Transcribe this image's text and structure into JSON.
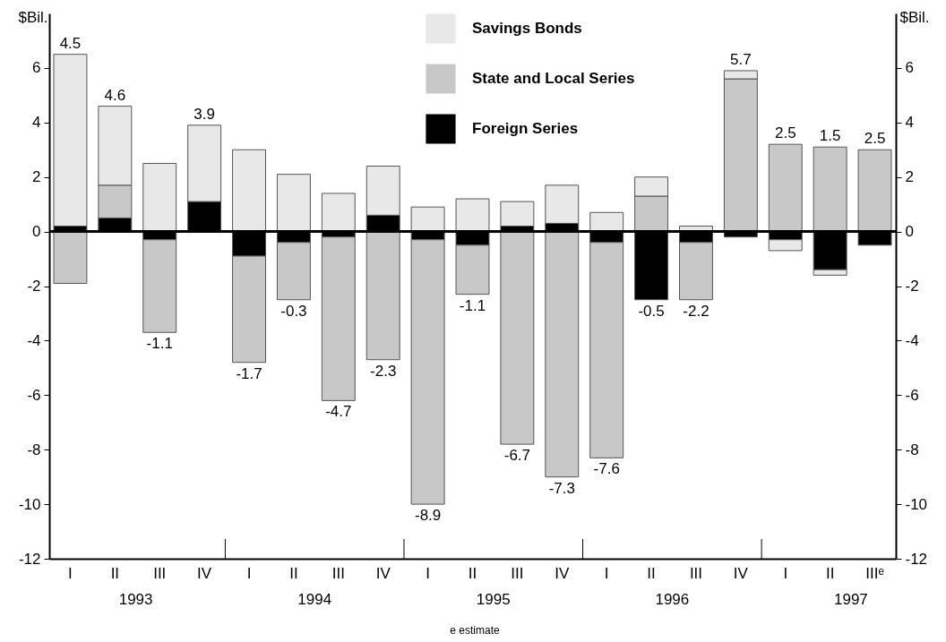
{
  "chart_data": {
    "type": "bar",
    "stacked": true,
    "categories": [
      "I",
      "II",
      "III",
      "IV",
      "I",
      "II",
      "III",
      "IV",
      "I",
      "II",
      "III",
      "IV",
      "I",
      "II",
      "III",
      "IV",
      "I",
      "II",
      "IIIᵉ"
    ],
    "series": [
      {
        "name": "Foreign Series",
        "color": "#000000",
        "values": [
          0.2,
          0.5,
          -0.3,
          1.1,
          -0.9,
          -0.4,
          -0.2,
          0.6,
          -0.3,
          -0.5,
          0.2,
          0.3,
          -0.4,
          -2.5,
          -0.4,
          -0.2,
          -0.3,
          -1.4,
          -0.5
        ]
      },
      {
        "name": "State and Local Series",
        "color": "#c8c8c8",
        "values": [
          -1.9,
          1.2,
          -3.4,
          null,
          -3.9,
          -2.1,
          -6.0,
          -4.7,
          -9.7,
          -1.8,
          -7.8,
          -9.0,
          -7.9,
          1.3,
          -2.1,
          5.6,
          3.2,
          3.1,
          3.0
        ]
      },
      {
        "name": "Savings Bonds",
        "color": "#e8e8e8",
        "values": [
          6.3,
          2.9,
          2.5,
          2.8,
          3.0,
          2.1,
          1.4,
          1.8,
          0.9,
          1.2,
          0.9,
          1.4,
          0.7,
          0.7,
          0.2,
          0.3,
          -0.4,
          -0.2,
          null
        ]
      }
    ],
    "totals": [
      "4.5",
      "4.6",
      "-1.1",
      "3.9",
      "-1.7",
      "-0.3",
      "-4.7",
      "-2.3",
      "-8.9",
      "-1.1",
      "-6.7",
      "-7.3",
      "-7.6",
      "-0.5",
      "-2.2",
      "5.7",
      "2.5",
      "1.5",
      "2.5"
    ],
    "ylabel": "$Bil.",
    "y2label": "$Bil.",
    "ylim": [
      -12,
      8
    ],
    "yticks": [
      -12,
      -10,
      -8,
      -6,
      -4,
      -2,
      0,
      2,
      4,
      6
    ],
    "y2lim": [
      -12,
      8
    ],
    "y2ticks": [
      -12,
      -10,
      -8,
      -6,
      -4,
      -2,
      0,
      2,
      4,
      6
    ],
    "ref_lines": [
      {
        "axis": "y",
        "value": 0,
        "color": "#000000"
      }
    ],
    "annotations": [
      "1993",
      "1994",
      "1995",
      "1996",
      "1997",
      "e estimate"
    ],
    "legend": "top",
    "grid": false
  }
}
